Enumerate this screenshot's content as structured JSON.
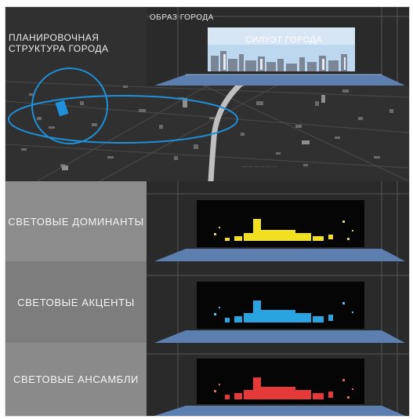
{
  "labels": {
    "urban_image": "ОБРАЗ ГОРОДА",
    "planning_line1": "ПЛАНИРОВОЧНАЯ",
    "planning_line2": "СТРУКТУРА ГОРОДА",
    "skyline": "СИЛУЭТ ГОРОДА"
  },
  "rows": [
    {
      "label": "СВЕТОВЫЕ ДОМИНАНТЫ",
      "color": "#f2e020"
    },
    {
      "label": "СВЕТОВЫЕ АКЦЕНТЫ",
      "color": "#2aa4e0"
    },
    {
      "label": "СВЕТОВЫЕ АНСАМБЛИ",
      "color": "#e63a3a"
    }
  ],
  "colors": {
    "map_highlight": "#1e8fd8",
    "stage_floor": "#5d7fb0",
    "sky": "#bcd7ee"
  }
}
